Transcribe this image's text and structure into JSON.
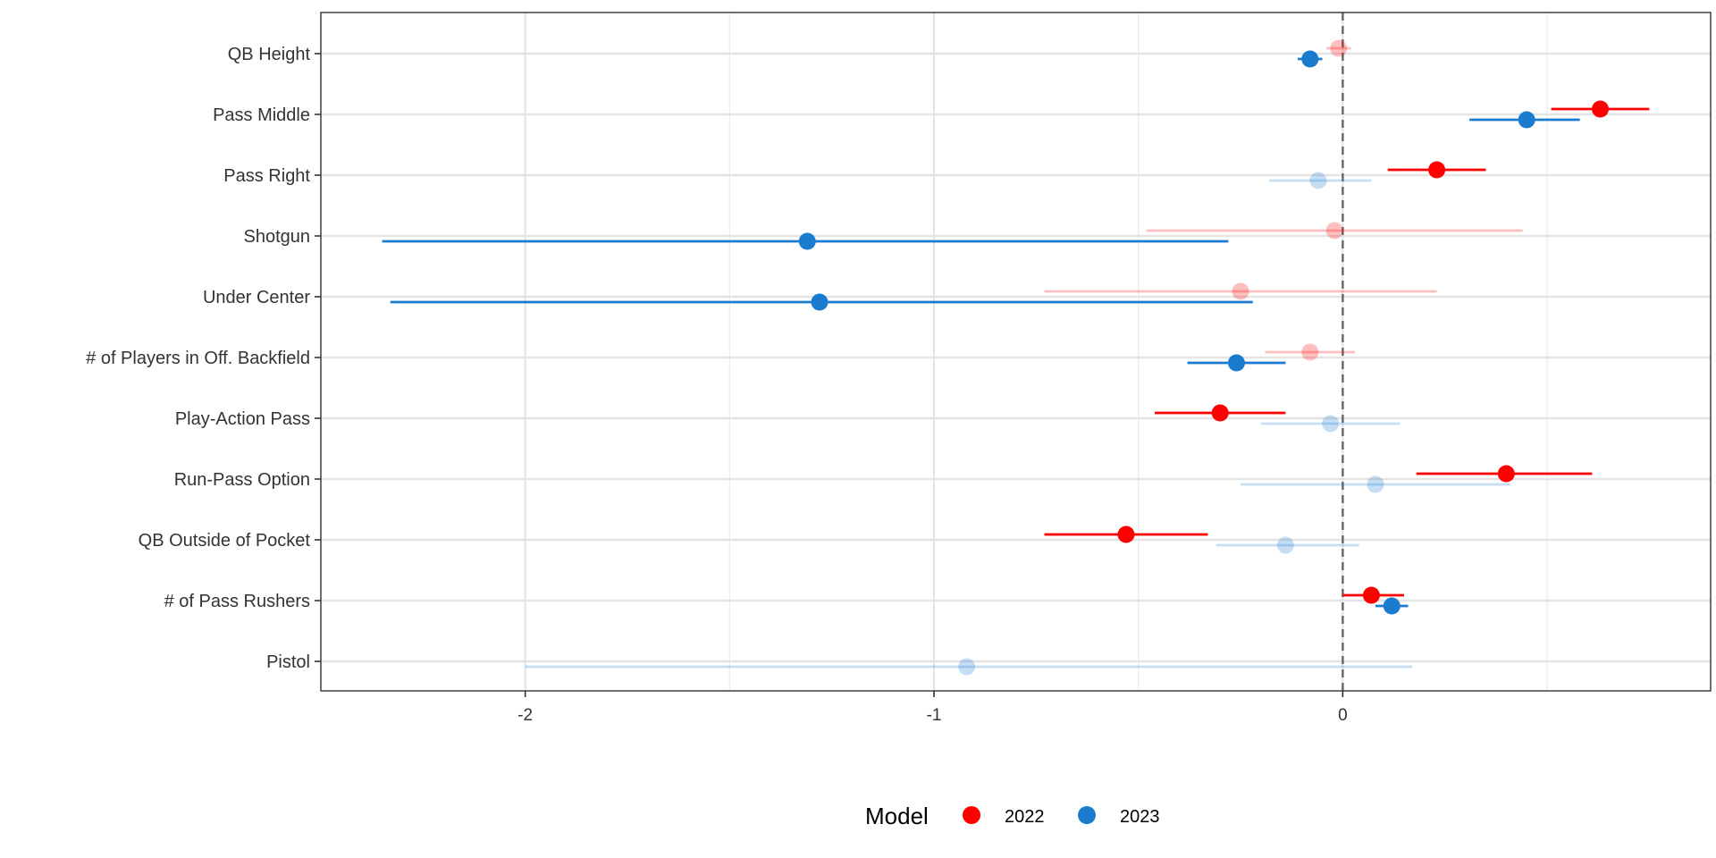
{
  "chart_data": {
    "type": "scatter",
    "title": "",
    "xlabel": "",
    "ylabel": "",
    "xlim": [
      -2.5,
      0.9
    ],
    "x_ticks": [
      -2,
      -1,
      0
    ],
    "categories": [
      "QB Height",
      "Pass Middle",
      "Pass Right",
      "Shotgun",
      "Under Center",
      "# of Players in Off. Backfield",
      "Play-Action Pass",
      "Run-Pass Option",
      "QB Outside of Pocket",
      "# of Pass Rushers",
      "Pistol"
    ],
    "grid": true,
    "reference_line": {
      "x": 0,
      "style": "dashed"
    },
    "legend": {
      "title": "Model",
      "position": "bottom",
      "entries": [
        {
          "label": "2022",
          "color": "#ff0000"
        },
        {
          "label": "2023",
          "color": "#1a7bcf"
        }
      ]
    },
    "series": [
      {
        "name": "2022",
        "color": "#ff0000",
        "points": [
          {
            "category": "QB Height",
            "estimate": -0.01,
            "lower": -0.04,
            "upper": 0.02,
            "significant": false
          },
          {
            "category": "Pass Middle",
            "estimate": 0.63,
            "lower": 0.51,
            "upper": 0.75,
            "significant": true
          },
          {
            "category": "Pass Right",
            "estimate": 0.23,
            "lower": 0.11,
            "upper": 0.35,
            "significant": true
          },
          {
            "category": "Shotgun",
            "estimate": -0.02,
            "lower": -0.48,
            "upper": 0.44,
            "significant": false
          },
          {
            "category": "Under Center",
            "estimate": -0.25,
            "lower": -0.73,
            "upper": 0.23,
            "significant": false
          },
          {
            "category": "# of Players in Off. Backfield",
            "estimate": -0.08,
            "lower": -0.19,
            "upper": 0.03,
            "significant": false
          },
          {
            "category": "Play-Action Pass",
            "estimate": -0.3,
            "lower": -0.46,
            "upper": -0.14,
            "significant": true
          },
          {
            "category": "Run-Pass Option",
            "estimate": 0.4,
            "lower": 0.18,
            "upper": 0.61,
            "significant": true
          },
          {
            "category": "QB Outside of Pocket",
            "estimate": -0.53,
            "lower": -0.73,
            "upper": -0.33,
            "significant": true
          },
          {
            "category": "# of Pass Rushers",
            "estimate": 0.07,
            "lower": 0.0,
            "upper": 0.15,
            "significant": true
          }
        ]
      },
      {
        "name": "2023",
        "color": "#1a7bcf",
        "points": [
          {
            "category": "QB Height",
            "estimate": -0.08,
            "lower": -0.11,
            "upper": -0.05,
            "significant": true
          },
          {
            "category": "Pass Middle",
            "estimate": 0.45,
            "lower": 0.31,
            "upper": 0.58,
            "significant": true
          },
          {
            "category": "Pass Right",
            "estimate": -0.06,
            "lower": -0.18,
            "upper": 0.07,
            "significant": false
          },
          {
            "category": "Shotgun",
            "estimate": -1.31,
            "lower": -2.35,
            "upper": -0.28,
            "significant": true
          },
          {
            "category": "Under Center",
            "estimate": -1.28,
            "lower": -2.33,
            "upper": -0.22,
            "significant": true
          },
          {
            "category": "# of Players in Off. Backfield",
            "estimate": -0.26,
            "lower": -0.38,
            "upper": -0.14,
            "significant": true
          },
          {
            "category": "Play-Action Pass",
            "estimate": -0.03,
            "lower": -0.2,
            "upper": 0.14,
            "significant": false
          },
          {
            "category": "Run-Pass Option",
            "estimate": 0.08,
            "lower": -0.25,
            "upper": 0.41,
            "significant": false
          },
          {
            "category": "QB Outside of Pocket",
            "estimate": -0.14,
            "lower": -0.31,
            "upper": 0.04,
            "significant": false
          },
          {
            "category": "# of Pass Rushers",
            "estimate": 0.12,
            "lower": 0.08,
            "upper": 0.16,
            "significant": true
          },
          {
            "category": "Pistol",
            "estimate": -0.92,
            "lower": -2.0,
            "upper": 0.17,
            "significant": false
          }
        ]
      }
    ]
  }
}
